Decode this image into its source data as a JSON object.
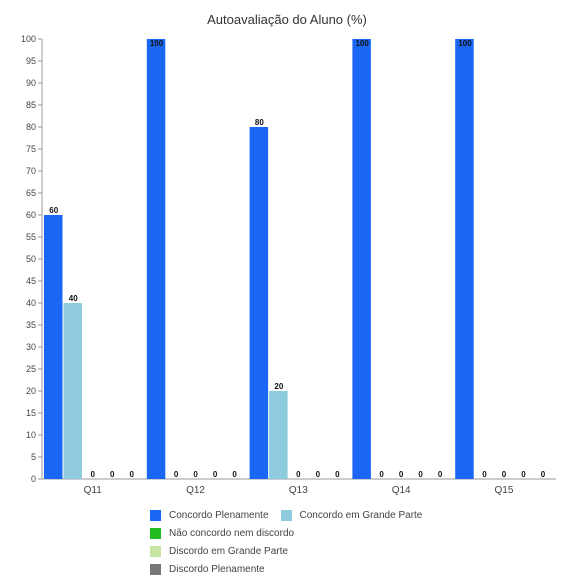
{
  "chart_data": {
    "type": "bar",
    "title": "Autoavaliação do Aluno (%)",
    "categories": [
      "Q11",
      "Q12",
      "Q13",
      "Q14",
      "Q15"
    ],
    "ylim": [
      0,
      100
    ],
    "ytick_step": 5,
    "grid": false,
    "legend_position": "bottom",
    "series": [
      {
        "name": "Concordo Plenamente",
        "color": "#1a66f5",
        "values": [
          60,
          100,
          80,
          100,
          100
        ]
      },
      {
        "name": "Concordo em Grande Parte",
        "color": "#8ecbde",
        "values": [
          40,
          0,
          20,
          0,
          0
        ]
      },
      {
        "name": "Não concordo nem discordo",
        "color": "#22bb22",
        "values": [
          0,
          0,
          0,
          0,
          0
        ]
      },
      {
        "name": "Discordo em Grande Parte",
        "color": "#c6e5a3",
        "values": [
          0,
          0,
          0,
          0,
          0
        ]
      },
      {
        "name": "Discordo Plenamente",
        "color": "#777777",
        "values": [
          0,
          0,
          0,
          0,
          0
        ]
      }
    ]
  }
}
